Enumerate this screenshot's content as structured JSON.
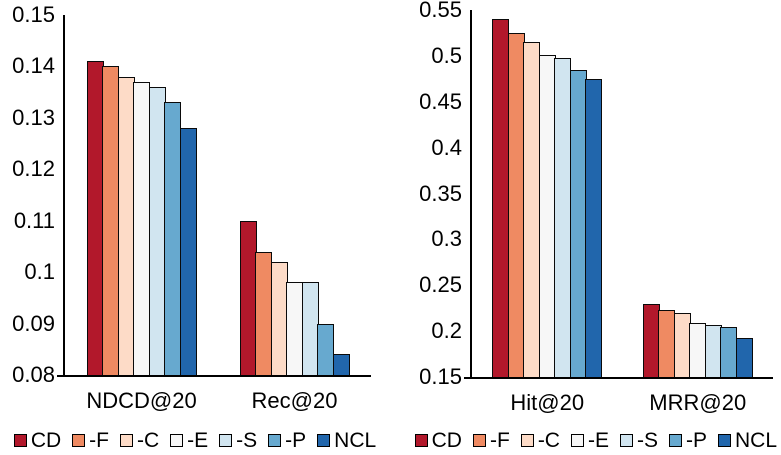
{
  "figure": {
    "background": "#ffffff",
    "axis_color": "#000000",
    "bar_outline_color": "#0a0a0a",
    "text_color": "#000000"
  },
  "chart_data": [
    {
      "type": "bar",
      "title": "",
      "xlabel": "",
      "ylabel": "",
      "grid": false,
      "categories": [
        "NDCD@20",
        "Rec@20"
      ],
      "series": [
        {
          "name": "CD",
          "color": "#B2182B",
          "values": [
            0.141,
            0.11
          ]
        },
        {
          "name": "-F",
          "color": "#EF8A62",
          "values": [
            0.14,
            0.104
          ]
        },
        {
          "name": "-C",
          "color": "#FDDBC7",
          "values": [
            0.138,
            0.102
          ]
        },
        {
          "name": "-E",
          "color": "#F7F7F7",
          "values": [
            0.137,
            0.098
          ]
        },
        {
          "name": "-S",
          "color": "#D1E5F0",
          "values": [
            0.136,
            0.098
          ]
        },
        {
          "name": "-P",
          "color": "#67A9CF",
          "values": [
            0.133,
            0.09
          ]
        },
        {
          "name": "NCL",
          "color": "#2166AC",
          "values": [
            0.128,
            0.084
          ]
        }
      ],
      "ylim": [
        0.08,
        0.15
      ],
      "ytick_labels": [
        "0.15",
        "0.14",
        "0.13",
        "0.12",
        "0.11",
        "0.1",
        "0.09",
        "0.08"
      ],
      "legend": {
        "position": "bottom",
        "entries": [
          "CD",
          "-F",
          "-C",
          "-E",
          "-S",
          "-P",
          "NCL"
        ]
      }
    },
    {
      "type": "bar",
      "title": "",
      "xlabel": "",
      "ylabel": "",
      "grid": false,
      "categories": [
        "Hit@20",
        "MRR@20"
      ],
      "series": [
        {
          "name": "CD",
          "color": "#B2182B",
          "values": [
            0.54,
            0.23
          ]
        },
        {
          "name": "-F",
          "color": "#EF8A62",
          "values": [
            0.525,
            0.223
          ]
        },
        {
          "name": "-C",
          "color": "#FDDBC7",
          "values": [
            0.515,
            0.22
          ]
        },
        {
          "name": "-E",
          "color": "#F7F7F7",
          "values": [
            0.501,
            0.209
          ]
        },
        {
          "name": "-S",
          "color": "#D1E5F0",
          "values": [
            0.498,
            0.207
          ]
        },
        {
          "name": "-P",
          "color": "#67A9CF",
          "values": [
            0.485,
            0.205
          ]
        },
        {
          "name": "NCL",
          "color": "#2166AC",
          "values": [
            0.475,
            0.192
          ]
        }
      ],
      "ylim": [
        0.15,
        0.55
      ],
      "ytick_labels": [
        "0.55",
        "0.5",
        "0.45",
        "0.4",
        "0.35",
        "0.3",
        "0.25",
        "0.2",
        "0.15"
      ],
      "legend": {
        "position": "bottom",
        "entries": [
          "CD",
          "-F",
          "-C",
          "-E",
          "-S",
          "-P",
          "NCL"
        ]
      }
    }
  ]
}
